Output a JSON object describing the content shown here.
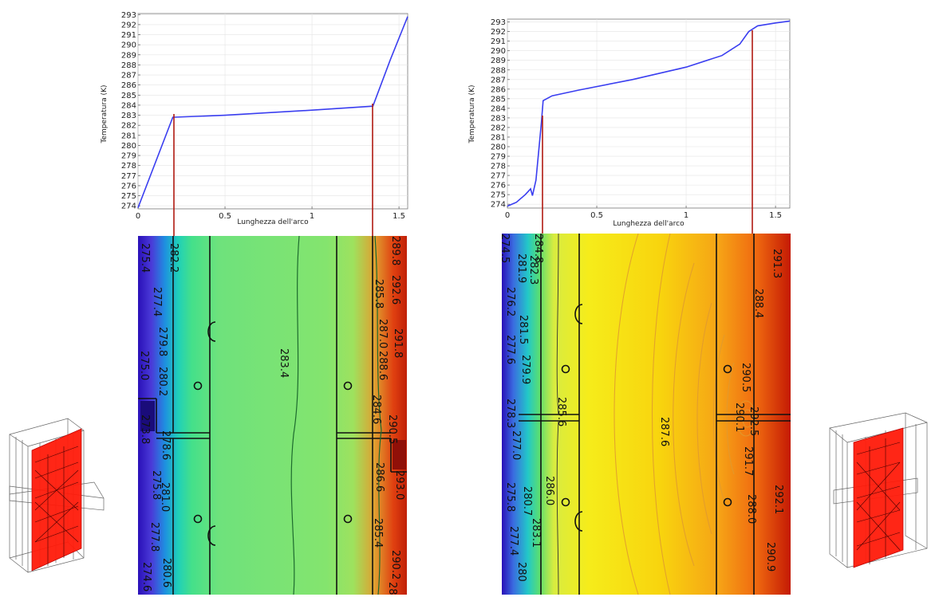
{
  "chart_data": [
    {
      "type": "line",
      "xlabel": "Lunghezza dell'arco",
      "ylabel": "Temperatura (K)",
      "xlim": [
        0,
        1.55
      ],
      "ylim": [
        273.7,
        293.1
      ],
      "xticks": [
        "0",
        "0.5",
        "1",
        "1.5"
      ],
      "yticks": [
        "274",
        "275",
        "276",
        "277",
        "278",
        "279",
        "280",
        "281",
        "282",
        "283",
        "284",
        "285",
        "286",
        "287",
        "288",
        "289",
        "290",
        "291",
        "292",
        "293"
      ],
      "series": [
        {
          "name": "Temperatura",
          "color": "#3a3ef0",
          "x": [
            0,
            0.2,
            0.5,
            1.0,
            1.35,
            1.45,
            1.55
          ],
          "y": [
            273.8,
            282.8,
            283.0,
            283.5,
            283.9,
            288.5,
            292.8
          ]
        }
      ],
      "markers_x": [
        0.2,
        1.36
      ],
      "contour_labels": [
        "282.2",
        "275.4",
        "277.4",
        "279.8",
        "280.2",
        "275.0",
        "283.4",
        "285.8",
        "287.0",
        "288.6",
        "284.6",
        "290.5",
        "289.8",
        "292.6",
        "291.8",
        "273.8",
        "278.6",
        "275.8",
        "281.0",
        "277.8",
        "274.6",
        "280.6",
        "286.6",
        "285.4",
        "293.0",
        "290.2",
        "28"
      ]
    },
    {
      "type": "line",
      "xlabel": "Lunghezza dell'arco",
      "ylabel": "Temperatura (K)",
      "xlim": [
        0,
        1.58
      ],
      "ylim": [
        273.6,
        293.3
      ],
      "xticks": [
        "0",
        "0.5",
        "1",
        "1.5"
      ],
      "yticks": [
        "274",
        "275",
        "276",
        "277",
        "278",
        "279",
        "280",
        "281",
        "282",
        "283",
        "284",
        "285",
        "286",
        "287",
        "288",
        "289",
        "290",
        "291",
        "292",
        "293"
      ],
      "series": [
        {
          "name": "Temperatura",
          "color": "#3a3ef0",
          "x": [
            0,
            0.05,
            0.1,
            0.13,
            0.14,
            0.16,
            0.19,
            0.2,
            0.25,
            0.4,
            0.7,
            1.0,
            1.2,
            1.3,
            1.35,
            1.4,
            1.5,
            1.58
          ],
          "y": [
            273.8,
            274.2,
            275.0,
            275.6,
            274.9,
            276.5,
            282.5,
            284.8,
            285.3,
            285.9,
            287.0,
            288.3,
            289.5,
            290.7,
            292.0,
            292.6,
            292.9,
            293.1
          ]
        }
      ],
      "markers_x": [
        0.2,
        1.36
      ],
      "contour_labels": [
        "274.5",
        "284.8",
        "281.9",
        "282.3",
        "276.2",
        "281.5",
        "279.9",
        "277.6",
        "285.6",
        "278.3",
        "277.0",
        "286.0",
        "280.7",
        "275.8",
        "283.1",
        "277.4",
        "280",
        "287.6",
        "291.3",
        "288.4",
        "290.5",
        "292.5",
        "290.1",
        "291.7",
        "292.1",
        "288.0",
        "290.9"
      ]
    }
  ]
}
